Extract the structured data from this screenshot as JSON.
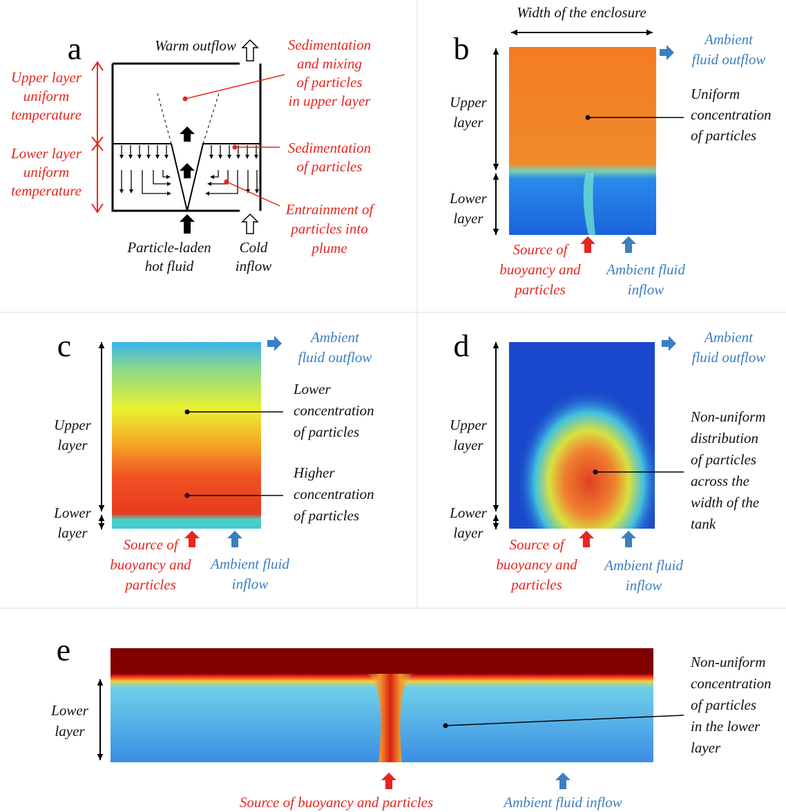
{
  "panel_a": {
    "letter": "a",
    "warm_outflow": "Warm outflow",
    "upper_layer": [
      "Upper layer",
      "uniform",
      "temperature"
    ],
    "lower_layer": [
      "Lower layer",
      "uniform",
      "temperature"
    ],
    "sedimentation_mixing": [
      "Sedimentation",
      "and mixing",
      "of particles",
      "in upper layer"
    ],
    "sedimentation": [
      "Sedimentation",
      "of particles"
    ],
    "entrainment": [
      "Entrainment  of",
      "particles into",
      "plume"
    ],
    "source": [
      "Particle-laden",
      "hot fluid"
    ],
    "cold_inflow": [
      "Cold",
      "inflow"
    ]
  },
  "panel_b": {
    "letter": "b",
    "width": "Width of the enclosure",
    "outflow": [
      "Ambient",
      "fluid outflow"
    ],
    "upper": [
      "Upper",
      "layer"
    ],
    "lower": [
      "Lower",
      "layer"
    ],
    "uniform": [
      "Uniform",
      "concentration",
      "of particles"
    ],
    "source": [
      "Source of",
      "buoyancy and",
      "particles"
    ],
    "inflow": [
      "Ambient fluid",
      "inflow"
    ]
  },
  "panel_c": {
    "letter": "c",
    "outflow": [
      "Ambient",
      "fluid outflow"
    ],
    "upper": [
      "Upper",
      "layer"
    ],
    "lower": [
      "Lower",
      "layer"
    ],
    "lower_concentration": [
      "Lower",
      "concentration",
      "of particles"
    ],
    "higher_concentration": [
      "Higher",
      "concentration",
      "of particles"
    ],
    "source": [
      "Source of",
      "buoyancy and",
      "particles"
    ],
    "inflow": [
      "Ambient fluid",
      "inflow"
    ]
  },
  "panel_d": {
    "letter": "d",
    "outflow": [
      "Ambient",
      "fluid outflow"
    ],
    "upper": [
      "Upper",
      "layer"
    ],
    "lower": [
      "Lower",
      "layer"
    ],
    "non_uniform": [
      "Non-uniform",
      "distribution",
      "of particles",
      "across the",
      "width of the",
      "tank"
    ],
    "source": [
      "Source of",
      "buoyancy and",
      "particles"
    ],
    "inflow": [
      "Ambient fluid",
      "inflow"
    ]
  },
  "panel_e": {
    "letter": "e",
    "lower": [
      "Lower",
      "layer"
    ],
    "non_uniform": [
      "Non-uniform",
      "concentration",
      "of particles",
      "in the lower",
      "layer"
    ],
    "source": "Source of buoyancy and particles",
    "inflow": "Ambient fluid inflow"
  }
}
